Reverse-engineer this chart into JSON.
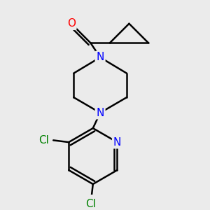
{
  "background_color": "#ebebeb",
  "bond_color": "#000000",
  "bond_width": 1.8,
  "atom_colors": {
    "O": "#ff0000",
    "N": "#0000ff",
    "Cl": "#008000",
    "C": "#000000"
  },
  "font_size_atom": 10,
  "fig_width": 3.0,
  "fig_height": 3.0,
  "dpi": 100
}
